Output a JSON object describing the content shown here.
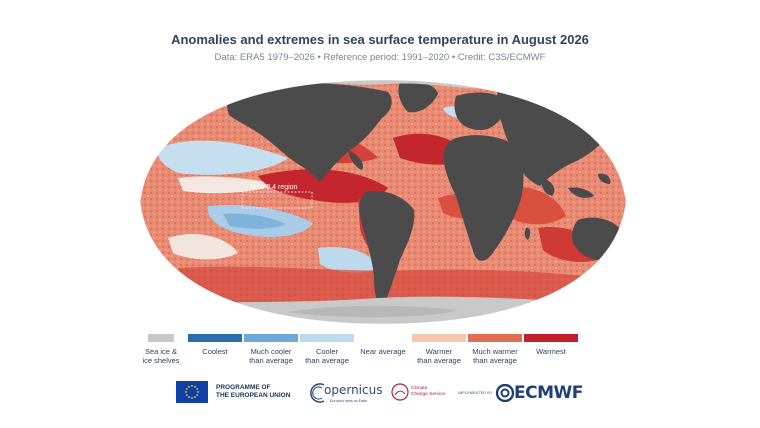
{
  "header": {
    "title": "Anomalies and extremes in sea surface temperature in August 2026",
    "subtitle": "Data: ERA5 1979–2026 • Reference period: 1991–2020 • Credit: C3S/ECMWF"
  },
  "map": {
    "region_label": "Niño 3.4 region",
    "colors": {
      "ocean_warm": "#e7735a",
      "ocean_warmest": "#c4262e",
      "ocean_near": "#f6e3dc",
      "ocean_cool": "#b8d8ee",
      "ocean_cooler": "#7fb3da",
      "land": "#4b4b4b",
      "ice": "#c9c9c9"
    }
  },
  "legend": {
    "items": [
      {
        "label_l1": "Sea ice &",
        "label_l2": "ice shelves",
        "color": "#c8c8c8"
      },
      {
        "label_l1": "Coolest",
        "label_l2": "",
        "color": "#2c6dae"
      },
      {
        "label_l1": "Much cooler",
        "label_l2": "than average",
        "color": "#6ea8d6"
      },
      {
        "label_l1": "Cooler",
        "label_l2": "than average",
        "color": "#bcdbef"
      },
      {
        "label_l1": "Near average",
        "label_l2": "",
        "color": "#ffffff"
      },
      {
        "label_l1": "Warmer",
        "label_l2": "than average",
        "color": "#f7c6b0"
      },
      {
        "label_l1": "Much warmer",
        "label_l2": "than average",
        "color": "#e36c55"
      },
      {
        "label_l1": "Warmest",
        "label_l2": "",
        "color": "#c0202c"
      }
    ]
  },
  "logos": {
    "eu_l1": "PROGRAMME OF",
    "eu_l2": "THE EUROPEAN UNION",
    "copernicus": "opernicus",
    "copernicus_tag": "Europe's eyes on Earth",
    "c3s_l1": "Climate",
    "c3s_l2": "Change Service",
    "implemented_by": "IMPLEMENTED BY",
    "ecmwf": "ECMWF"
  }
}
